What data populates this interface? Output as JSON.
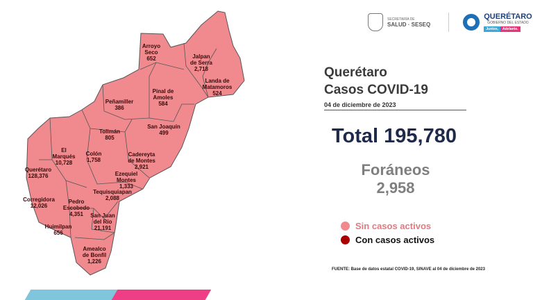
{
  "header": {
    "title_line1": "Querétaro",
    "title_line2": "Casos COVID-19",
    "date": "04 de diciembre de 2023"
  },
  "logos": {
    "secretaria_small": "SECRETARÍA DE",
    "secretaria_big": "SALUD · SESEQ",
    "seal_caption": "QUERÉTARO",
    "gov_name": "QUERÉTARO",
    "gov_sub": "GOBIERNO DEL ESTADO",
    "gov_tag1": "Juntos,",
    "gov_tag2": "Adelante."
  },
  "total": {
    "label": "Total 195,780"
  },
  "foraneos": {
    "label": "Foráneos",
    "value": "2,958"
  },
  "legend": {
    "items": [
      {
        "label": "Sin casos activos",
        "color": "#f08a8f"
      },
      {
        "label": "Con casos activos",
        "color": "#a80000"
      }
    ]
  },
  "source": "FUENTE: Base de datos estatal COVID-19, SINAVE al 04 de diciembre de 2023",
  "map": {
    "fill": "#f08a8f",
    "border": "#555555",
    "municipalities": [
      {
        "name": "Arroyo\nSeco",
        "value": "652"
      },
      {
        "name": "Jalpan\nde Serra",
        "value": "2,718"
      },
      {
        "name": "Landa de\nMatamoros",
        "value": "524"
      },
      {
        "name": "Peñamiller",
        "value": "386"
      },
      {
        "name": "Pinal de\nAmoles",
        "value": "584"
      },
      {
        "name": "San Joaquín",
        "value": "499"
      },
      {
        "name": "Tolimán",
        "value": "805"
      },
      {
        "name": "El\nMarqués",
        "value": "10,728"
      },
      {
        "name": "Colón",
        "value": "1,758"
      },
      {
        "name": "Cadereyta\nde Montes",
        "value": "2,921"
      },
      {
        "name": "Querétaro",
        "value": "128,376"
      },
      {
        "name": "Ezequiel\nMontes",
        "value": "1,333"
      },
      {
        "name": "Tequisquiapan",
        "value": "2,088"
      },
      {
        "name": "Corregidora",
        "value": "12,026"
      },
      {
        "name": "Pedro\nEscobedo",
        "value": "4,351"
      },
      {
        "name": "Huimilpan",
        "value": "656"
      },
      {
        "name": "San Juan\ndel Río",
        "value": "21,191"
      },
      {
        "name": "Amealco\nde Bonfil",
        "value": "1,226"
      }
    ]
  }
}
